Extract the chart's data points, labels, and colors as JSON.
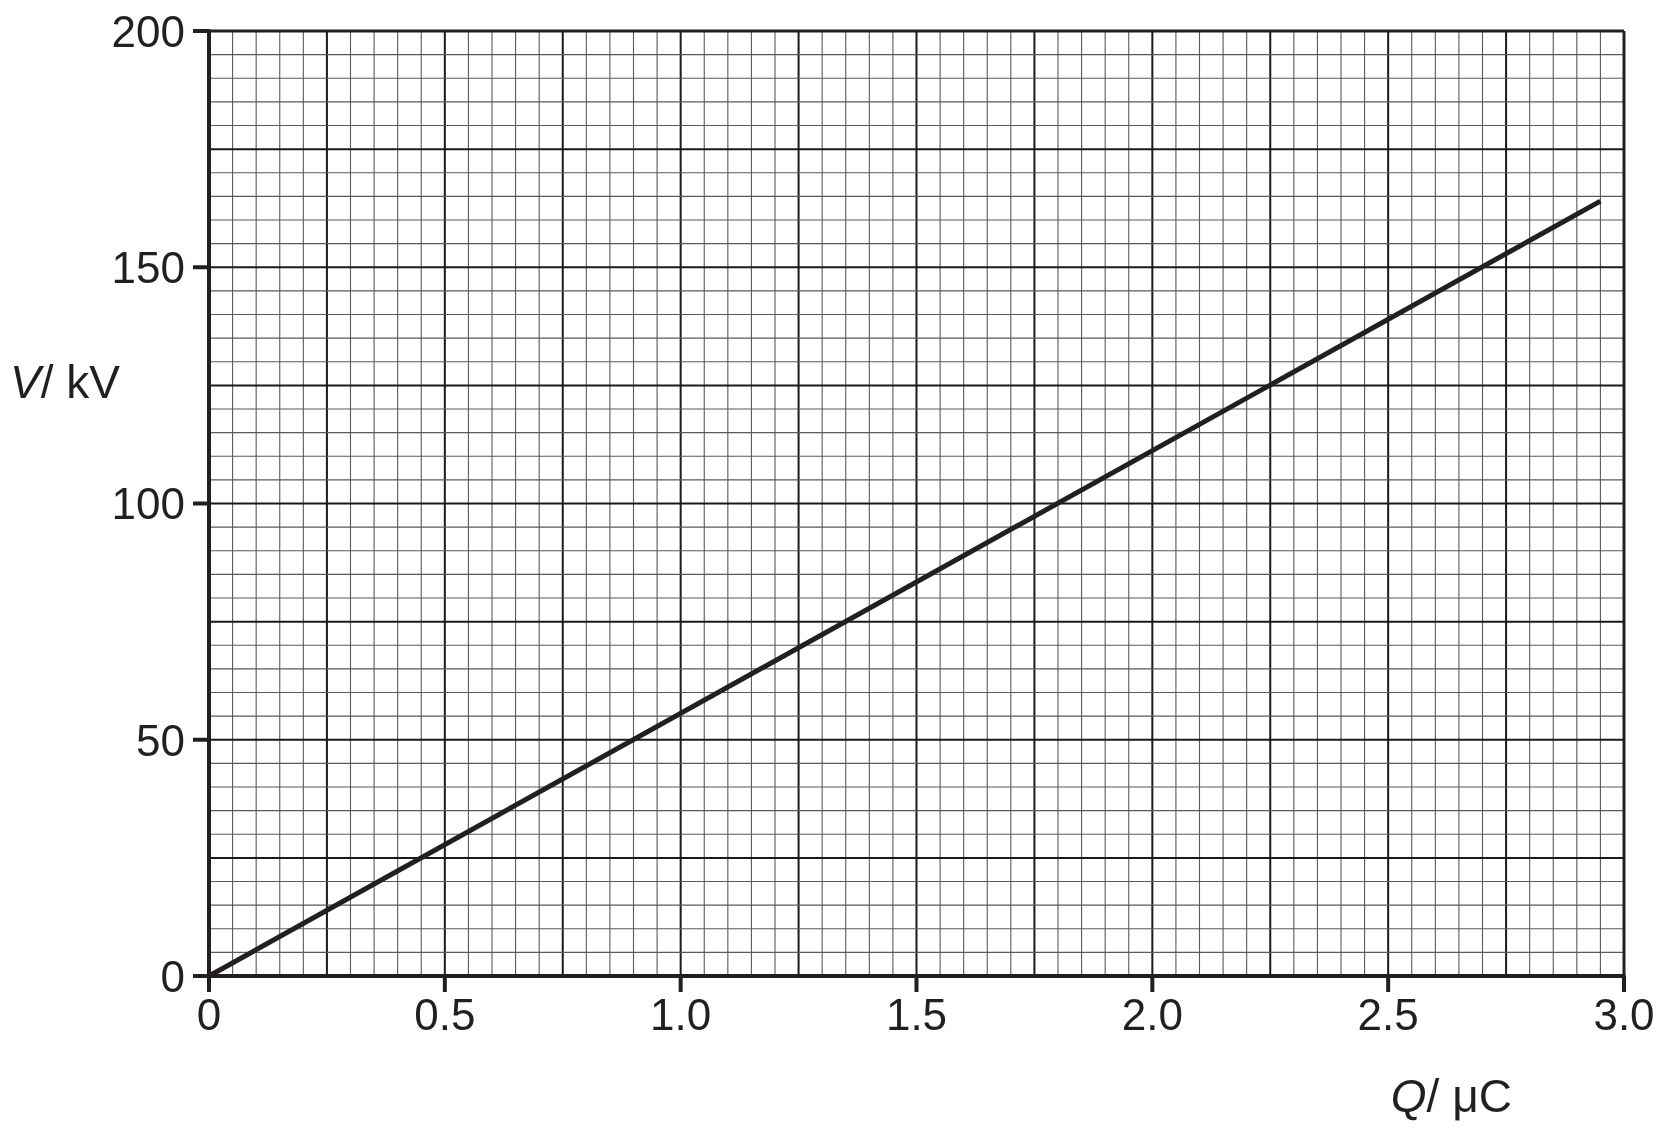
{
  "chart_data": {
    "type": "line",
    "xlabel": "Q/ μC",
    "ylabel": "V/ kV",
    "x": [
      0,
      2.95
    ],
    "series": [
      {
        "color": "#231f20",
        "values": [
          0,
          164
        ]
      }
    ],
    "xlim": [
      0,
      3
    ],
    "ylim": [
      0,
      200
    ],
    "xticks": [
      0,
      0.5,
      {
        "value": 1,
        "label": "1.0"
      },
      1.5,
      {
        "value": 2,
        "label": "2.0"
      },
      2.5,
      {
        "value": 3,
        "label": "3.0"
      }
    ],
    "yticks": [
      0,
      50,
      100,
      150,
      200
    ],
    "grid": true,
    "line_style": "solid"
  }
}
